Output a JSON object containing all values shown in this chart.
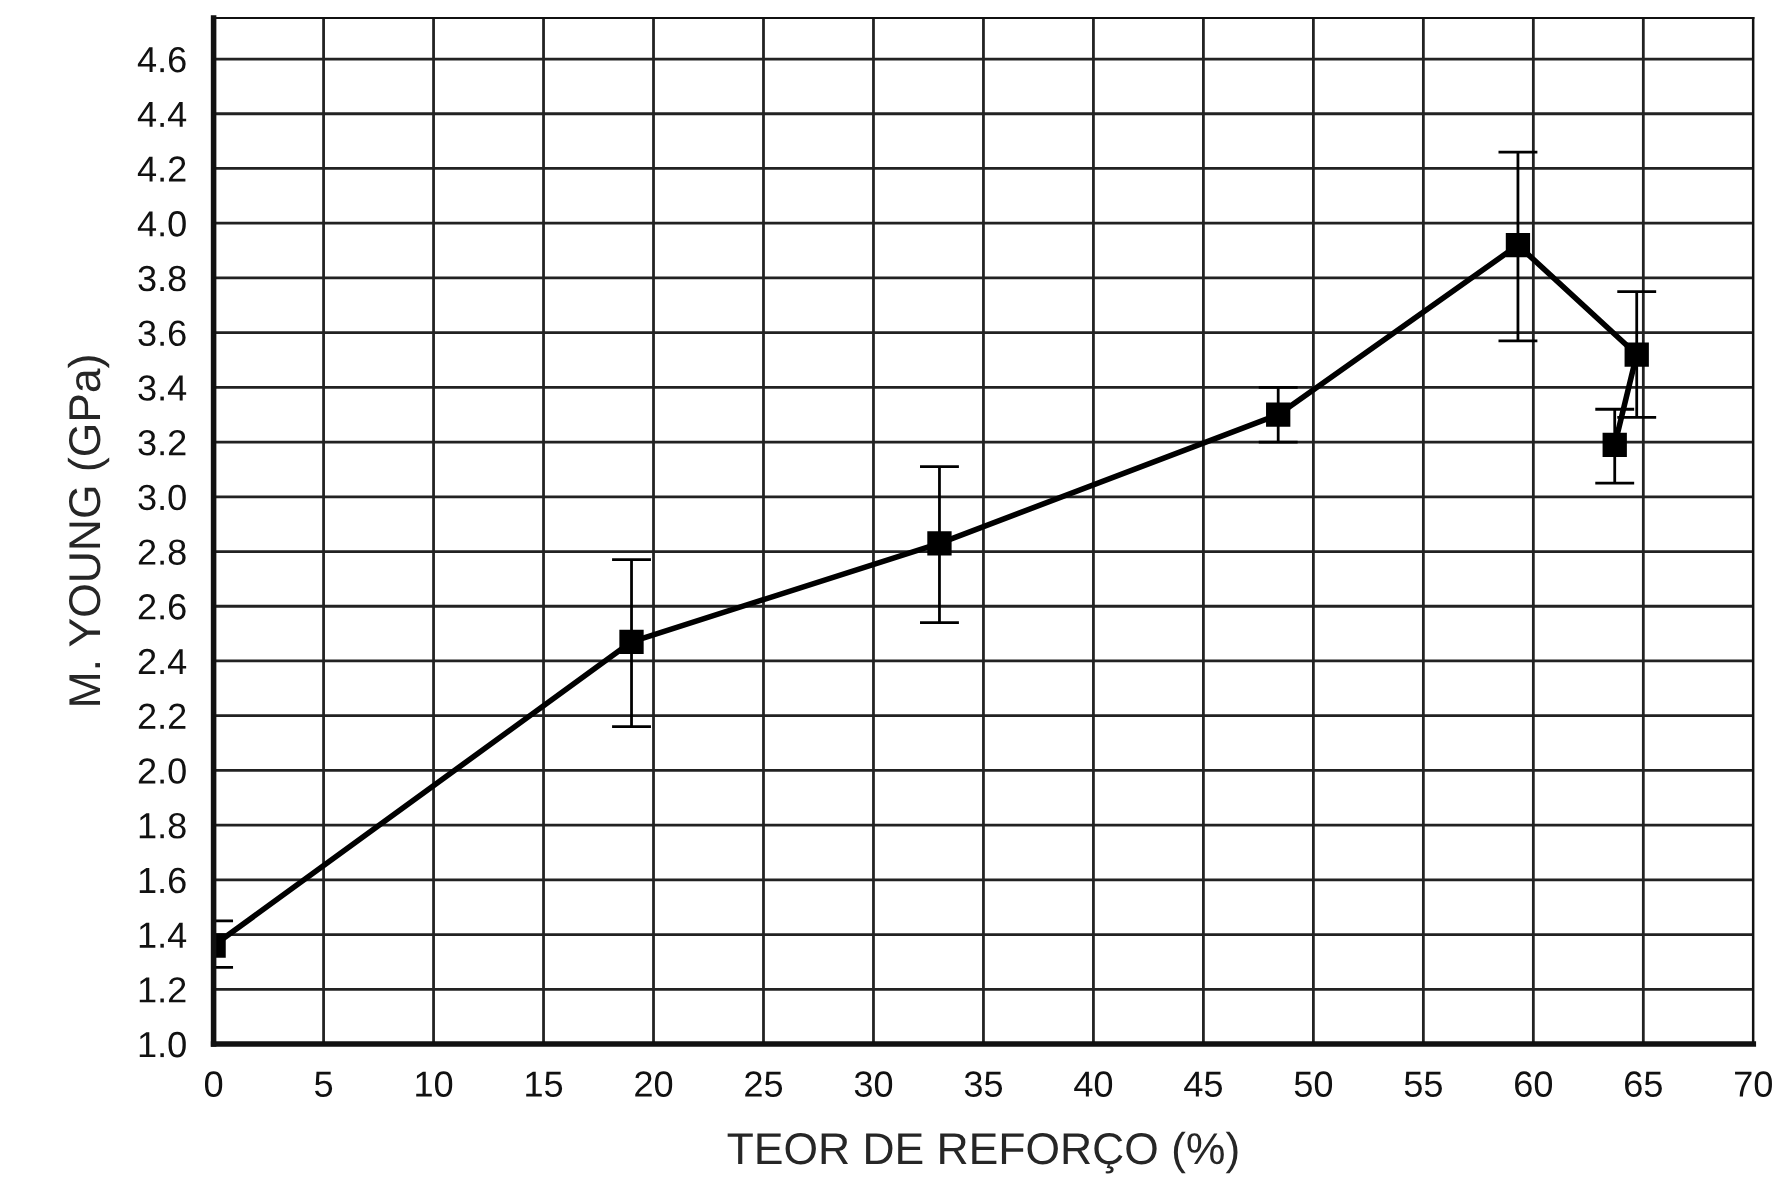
{
  "chart_data": {
    "type": "line",
    "xlabel": "TEOR DE REFORÇO (%)",
    "ylabel": "M. YOUNG (GPa)",
    "x": [
      0,
      19,
      33,
      48.4,
      59.3,
      64.7,
      63.7
    ],
    "series": [
      {
        "color": "#000000",
        "values": [
          1.36,
          2.47,
          2.83,
          3.3,
          3.92,
          3.52,
          3.19
        ],
        "errors": [
          [
            1.28,
            1.45
          ],
          [
            2.16,
            2.77
          ],
          [
            2.54,
            3.11
          ],
          [
            3.2,
            3.4
          ],
          [
            3.57,
            4.26
          ],
          [
            3.29,
            3.75
          ],
          [
            3.05,
            3.32
          ]
        ]
      }
    ],
    "xlim": [
      0,
      70
    ],
    "xticks": [
      0,
      5,
      10,
      15,
      20,
      25,
      30,
      35,
      40,
      45,
      50,
      55,
      60,
      65,
      70
    ],
    "ylim": [
      1.0,
      4.75
    ],
    "yticks": [
      {
        "value": 1.0,
        "label": "1.0"
      },
      1.2,
      1.4,
      1.6,
      1.8,
      {
        "value": 2.0,
        "label": "2.0"
      },
      2.2,
      2.4,
      2.6,
      2.8,
      {
        "value": 3.0,
        "label": "3.0"
      },
      3.2,
      3.4,
      3.6,
      3.8,
      {
        "value": 4.0,
        "label": "4.0"
      },
      4.2,
      4.4,
      4.6
    ],
    "grid": true,
    "marker": "square",
    "line_style": "solid"
  }
}
